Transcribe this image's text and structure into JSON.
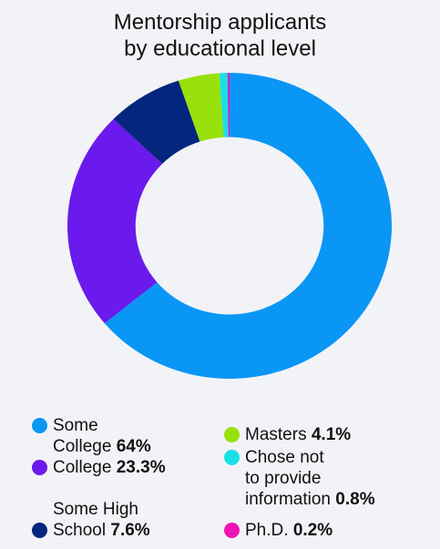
{
  "chart_data": {
    "type": "pie",
    "donut": true,
    "title": "Mentorship applicants by educational level",
    "title_lines": [
      "Mentorship applicants",
      "by educational level"
    ],
    "slices": [
      {
        "label": "Some College",
        "label_lines": [
          "Some",
          "College"
        ],
        "value": 64,
        "value_label": "64%",
        "color": "#0a96f5"
      },
      {
        "label": "College",
        "label_lines": [
          "College"
        ],
        "value": 23.3,
        "value_label": "23.3%",
        "color": "#6a1aec"
      },
      {
        "label": "Some High School",
        "label_lines": [
          "Some High",
          "School"
        ],
        "value": 7.6,
        "value_label": "7.6%",
        "color": "#05267e"
      },
      {
        "label": "Masters",
        "label_lines": [
          "Masters"
        ],
        "value": 4.1,
        "value_label": "4.1%",
        "color": "#98e10b"
      },
      {
        "label": "Chose not to provide information",
        "label_lines": [
          "Chose not",
          "to provide",
          "information"
        ],
        "value": 0.8,
        "value_label": "0.8%",
        "color": "#19dfe6"
      },
      {
        "label": "Ph.D.",
        "label_lines": [
          "Ph.D."
        ],
        "value": 0.2,
        "value_label": "0.2%",
        "color": "#f012b7"
      }
    ],
    "legend_placement": "bottom"
  }
}
